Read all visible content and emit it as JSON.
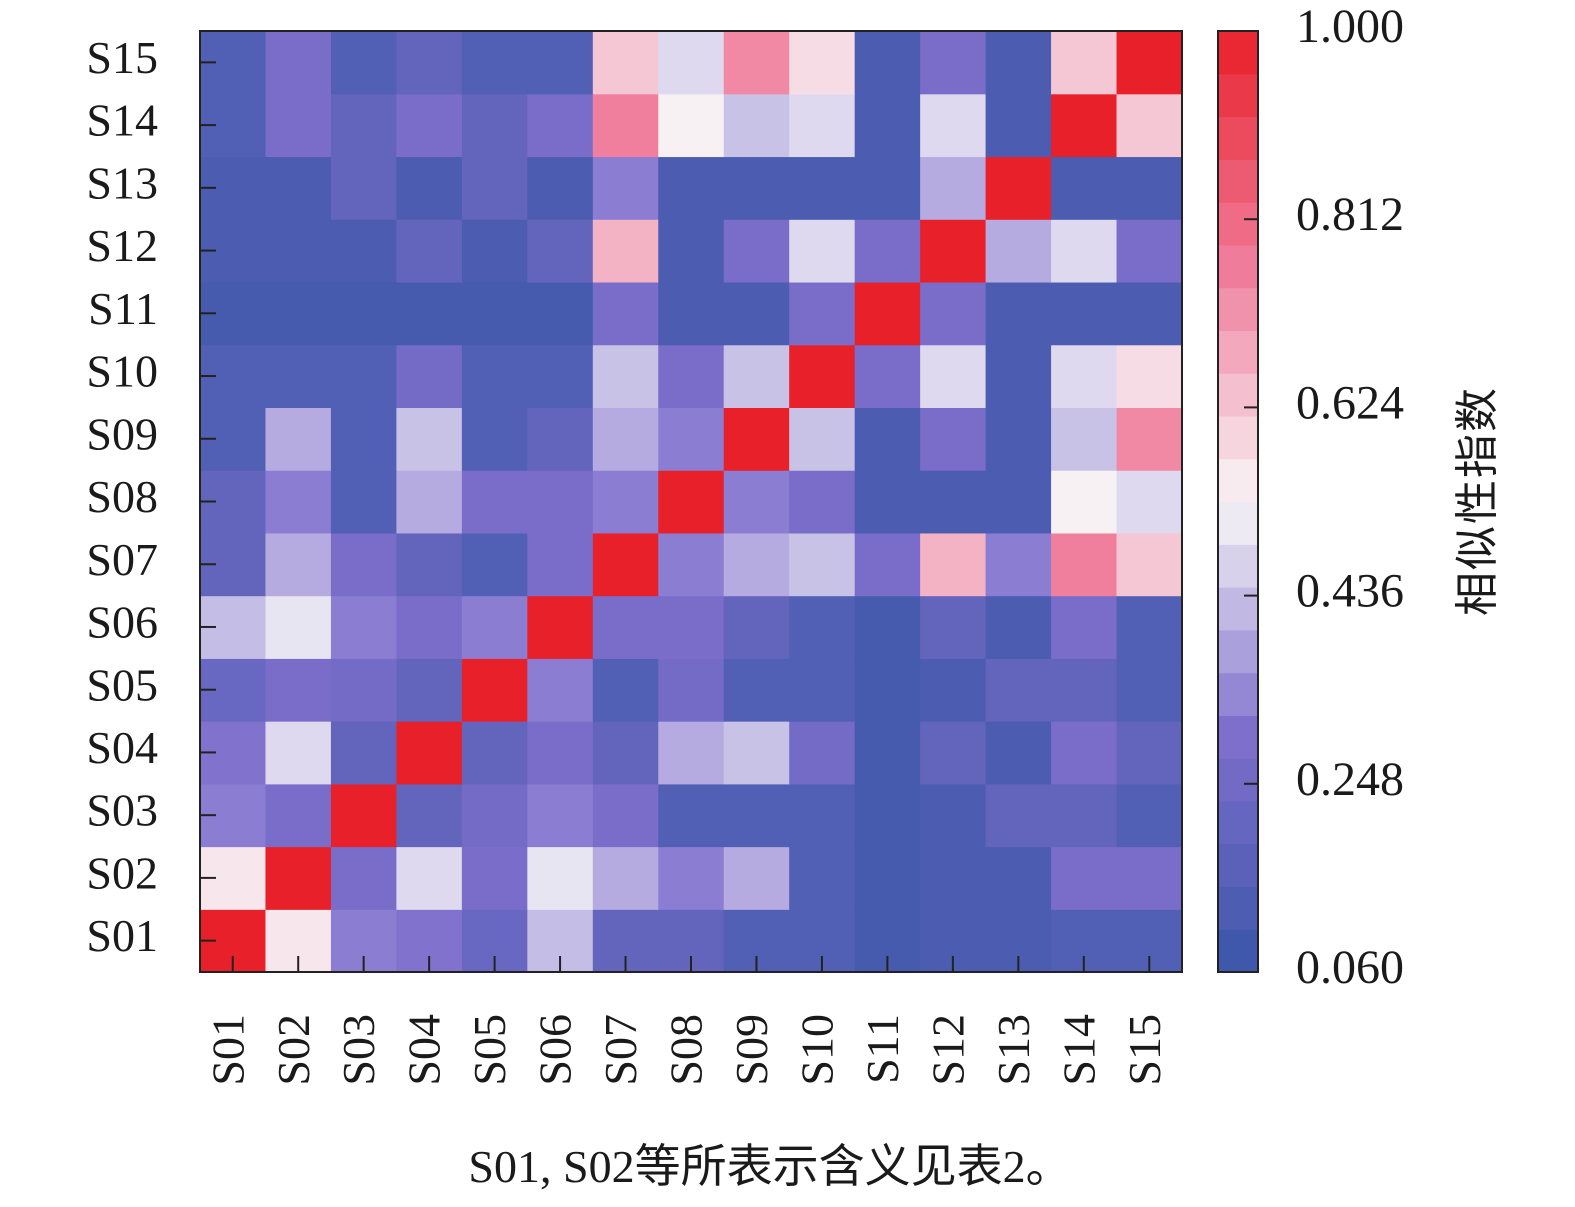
{
  "chart_data": {
    "type": "heatmap",
    "title": "",
    "x_labels": [
      "S01",
      "S02",
      "S03",
      "S04",
      "S05",
      "S06",
      "S07",
      "S08",
      "S09",
      "S10",
      "S11",
      "S12",
      "S13",
      "S14",
      "S15"
    ],
    "y_labels": [
      "S01",
      "S02",
      "S03",
      "S04",
      "S05",
      "S06",
      "S07",
      "S08",
      "S09",
      "S10",
      "S11",
      "S12",
      "S13",
      "S14",
      "S15"
    ],
    "values": [
      [
        1.0,
        0.56,
        0.32,
        0.3,
        0.22,
        0.43,
        0.2,
        0.2,
        0.14,
        0.14,
        0.1,
        0.12,
        0.12,
        0.14,
        0.14
      ],
      [
        0.56,
        1.0,
        0.28,
        0.48,
        0.28,
        0.5,
        0.4,
        0.32,
        0.4,
        0.14,
        0.1,
        0.12,
        0.12,
        0.28,
        0.28
      ],
      [
        0.32,
        0.28,
        1.0,
        0.2,
        0.26,
        0.32,
        0.28,
        0.14,
        0.14,
        0.14,
        0.1,
        0.12,
        0.2,
        0.2,
        0.14
      ],
      [
        0.3,
        0.48,
        0.2,
        1.0,
        0.2,
        0.28,
        0.2,
        0.4,
        0.44,
        0.26,
        0.1,
        0.2,
        0.12,
        0.28,
        0.2
      ],
      [
        0.22,
        0.28,
        0.26,
        0.2,
        1.0,
        0.32,
        0.14,
        0.26,
        0.14,
        0.14,
        0.1,
        0.12,
        0.2,
        0.2,
        0.14
      ],
      [
        0.43,
        0.5,
        0.32,
        0.28,
        0.32,
        1.0,
        0.28,
        0.28,
        0.2,
        0.14,
        0.1,
        0.2,
        0.12,
        0.28,
        0.14
      ],
      [
        0.2,
        0.4,
        0.28,
        0.2,
        0.14,
        0.28,
        1.0,
        0.32,
        0.4,
        0.44,
        0.28,
        0.66,
        0.32,
        0.76,
        0.62
      ],
      [
        0.2,
        0.32,
        0.14,
        0.4,
        0.28,
        0.28,
        0.32,
        1.0,
        0.32,
        0.28,
        0.12,
        0.12,
        0.12,
        0.54,
        0.48
      ],
      [
        0.14,
        0.4,
        0.14,
        0.44,
        0.14,
        0.2,
        0.4,
        0.32,
        1.0,
        0.44,
        0.12,
        0.28,
        0.12,
        0.44,
        0.74
      ],
      [
        0.14,
        0.14,
        0.14,
        0.26,
        0.14,
        0.14,
        0.44,
        0.28,
        0.44,
        1.0,
        0.28,
        0.48,
        0.12,
        0.48,
        0.58
      ],
      [
        0.1,
        0.1,
        0.1,
        0.1,
        0.1,
        0.1,
        0.28,
        0.12,
        0.12,
        0.28,
        1.0,
        0.28,
        0.12,
        0.12,
        0.12
      ],
      [
        0.12,
        0.12,
        0.12,
        0.2,
        0.12,
        0.2,
        0.66,
        0.12,
        0.28,
        0.48,
        0.28,
        1.0,
        0.4,
        0.48,
        0.28
      ],
      [
        0.12,
        0.12,
        0.2,
        0.12,
        0.2,
        0.12,
        0.32,
        0.12,
        0.12,
        0.12,
        0.12,
        0.4,
        1.0,
        0.12,
        0.12
      ],
      [
        0.14,
        0.28,
        0.2,
        0.28,
        0.2,
        0.28,
        0.76,
        0.54,
        0.44,
        0.48,
        0.12,
        0.48,
        0.12,
        1.0,
        0.62
      ],
      [
        0.14,
        0.28,
        0.14,
        0.2,
        0.14,
        0.14,
        0.62,
        0.48,
        0.74,
        0.58,
        0.12,
        0.28,
        0.12,
        0.62,
        1.0
      ]
    ],
    "colorbar": {
      "label": "相似性指数",
      "min": 0.06,
      "max": 1.0,
      "ticks": [
        "0.060",
        "0.248",
        "0.436",
        "0.624",
        "0.812",
        "1.000"
      ],
      "colors": [
        "#3a56a8",
        "#7e6fcc",
        "#f8f6f8",
        "#f07c9b",
        "#e8202a"
      ]
    },
    "note": "S01, S02等所表示含义见表2。"
  }
}
